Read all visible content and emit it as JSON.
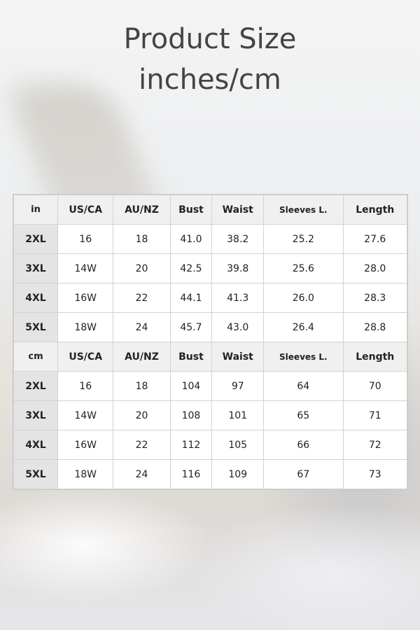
{
  "title": {
    "line1": "Product Size",
    "line2": "inches/cm"
  },
  "columns": [
    "US/CA",
    "AU/NZ",
    "Bust",
    "Waist",
    "Sleeves L.",
    "Length"
  ],
  "tables": [
    {
      "unit": "in",
      "rows": [
        {
          "size": "2XL",
          "values": [
            "16",
            "18",
            "41.0",
            "38.2",
            "25.2",
            "27.6"
          ]
        },
        {
          "size": "3XL",
          "values": [
            "14W",
            "20",
            "42.5",
            "39.8",
            "25.6",
            "28.0"
          ]
        },
        {
          "size": "4XL",
          "values": [
            "16W",
            "22",
            "44.1",
            "41.3",
            "26.0",
            "28.3"
          ]
        },
        {
          "size": "5XL",
          "values": [
            "18W",
            "24",
            "45.7",
            "43.0",
            "26.4",
            "28.8"
          ]
        }
      ]
    },
    {
      "unit": "cm",
      "rows": [
        {
          "size": "2XL",
          "values": [
            "16",
            "18",
            "104",
            "97",
            "64",
            "70"
          ]
        },
        {
          "size": "3XL",
          "values": [
            "14W",
            "20",
            "108",
            "101",
            "65",
            "71"
          ]
        },
        {
          "size": "4XL",
          "values": [
            "16W",
            "22",
            "112",
            "105",
            "66",
            "72"
          ]
        },
        {
          "size": "5XL",
          "values": [
            "18W",
            "24",
            "116",
            "109",
            "67",
            "73"
          ]
        }
      ]
    }
  ]
}
